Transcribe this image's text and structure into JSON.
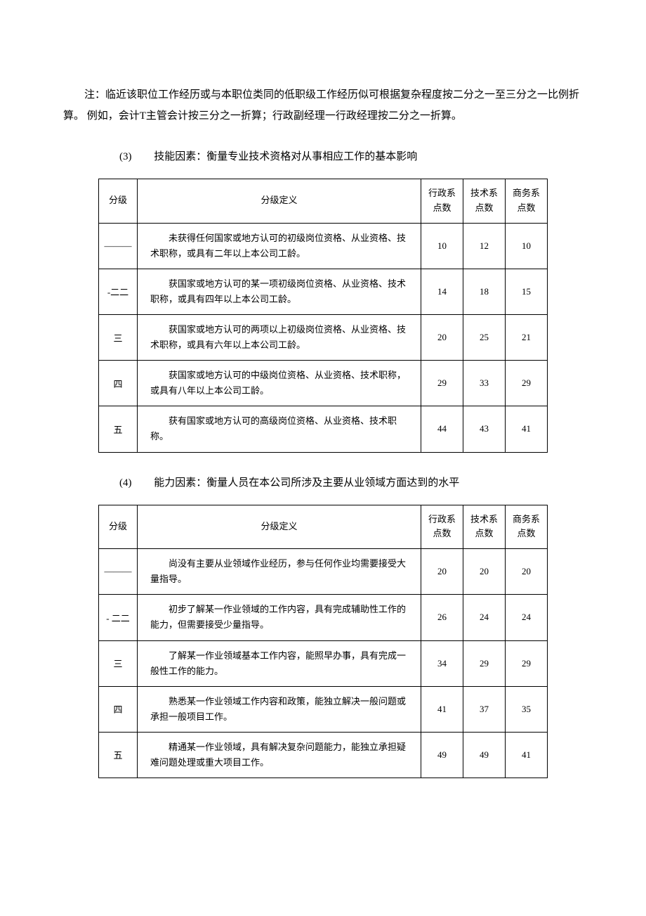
{
  "note": "注：临近该职位工作经历或与本职位类同的低职级工作经历似可根据复杂程度按二分之一至三分之一比例折算。 例如，会计T主管会计按三分之一折算；行政副经理一行政经理按二分之一折算。",
  "sections": [
    {
      "num": "(3)",
      "title": "技能因素：衡量专业技术资格对从事相应工作的基本影响",
      "headers": {
        "level": "分级",
        "def": "分级定义",
        "admin": "行政系点数",
        "tech": "技术系点数",
        "biz": "商务系点数"
      },
      "rows": [
        {
          "level": "———",
          "def": "未获得任何国家或地方认可的初级岗位资格、从业资格、技术职称，或具有二年以上本公司工龄。",
          "admin": "10",
          "tech": "12",
          "biz": "10"
        },
        {
          "level": "-二二",
          "def": "获国家或地方认可的某一项初级岗位资格、从业资格、技术职称，或具有四年以上本公司工龄。",
          "admin": "14",
          "tech": "18",
          "biz": "15"
        },
        {
          "level": "三",
          "def": "获国家或地方认可的两项以上初级岗位资格、从业资格、技术职称，或具有六年以上本公司工龄。",
          "admin": "20",
          "tech": "25",
          "biz": "21"
        },
        {
          "level": "四",
          "def": "获国家或地方认可的中级岗位资格、从业资格、技术职称，或具有八年以上本公司工龄。",
          "admin": "29",
          "tech": "33",
          "biz": "29"
        },
        {
          "level": "五",
          "def": "获有国家或地方认可的高级岗位资格、从业资格、技术职称。",
          "admin": "44",
          "tech": "43",
          "biz": "41"
        }
      ]
    },
    {
      "num": "(4)",
      "title": "能力因素：衡量人员在本公司所涉及主要从业领域方面达到的水平",
      "headers": {
        "level": "分级",
        "def": "分级定义",
        "admin": "行政系点数",
        "tech": "技术系点数",
        "biz": "商务系点数"
      },
      "rows": [
        {
          "level": "———",
          "def": "尚没有主要从业领域作业经历，参与任何作业均需要接受大量指导。",
          "admin": "20",
          "tech": "20",
          "biz": "20"
        },
        {
          "level": "-\n二二",
          "def": "初步了解某一作业领域的工作内容，具有完成辅助性工作的能力，但需要接受少量指导。",
          "admin": "26",
          "tech": "24",
          "biz": "24"
        },
        {
          "level": "三",
          "def": "了解某一作业领域基本工作内容，能照早办事，具有完成一般性工作的能力。",
          "admin": "34",
          "tech": "29",
          "biz": "29"
        },
        {
          "level": "四",
          "def": "熟悉某一作业领域工作内容和政策，能独立解决一般问题或承担一般项目工作。",
          "admin": "41",
          "tech": "37",
          "biz": "35"
        },
        {
          "level": "五",
          "def": "精通某一作业领域，具有解决复杂问题能力，能独立承担疑难问题处理或重大项目工作。",
          "admin": "49",
          "tech": "49",
          "biz": "41"
        }
      ]
    }
  ],
  "colors": {
    "text": "#000000",
    "border": "#000000",
    "bg": "#ffffff"
  }
}
